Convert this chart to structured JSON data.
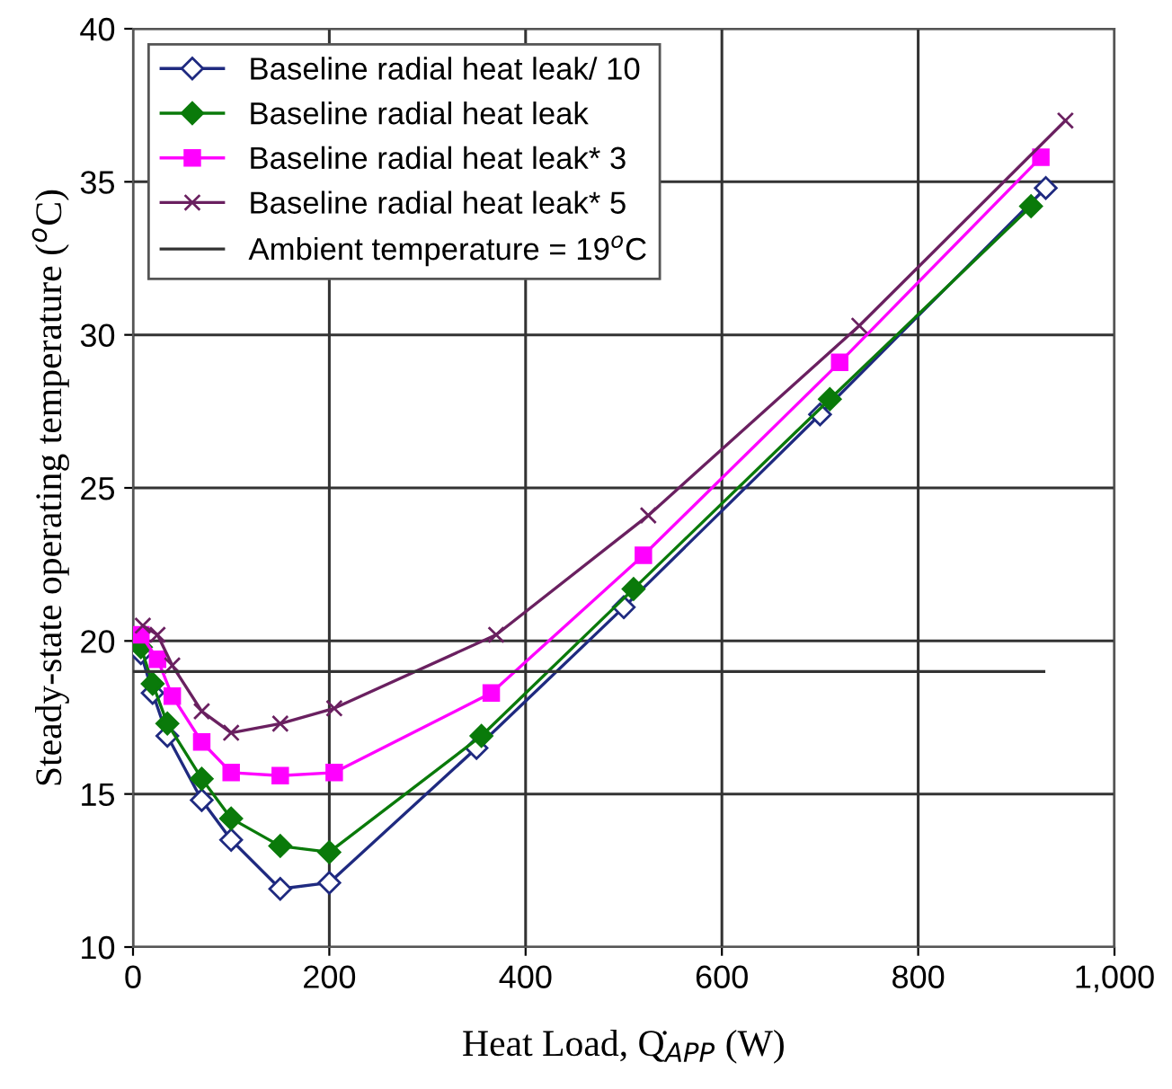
{
  "chart_data": {
    "type": "line",
    "xlabel": "Heat Load, Q̇$_{APP}$ (W)",
    "ylabel": "Steady-state operating temperature ($^{o}$C)",
    "xlim": [
      0,
      1000
    ],
    "ylim": [
      10,
      40
    ],
    "xticks": [
      0,
      200,
      400,
      600,
      800,
      {
        "value": 1000,
        "label": "1,000"
      }
    ],
    "yticks": [
      10,
      15,
      20,
      25,
      30,
      35,
      40
    ],
    "grid": true,
    "legend": "top left",
    "series": [
      {
        "name": "Baseline radial heat leak/ 10",
        "color": "#1f2a80",
        "marker": "diamond",
        "x": [
          8,
          20,
          35,
          70,
          100,
          150,
          200,
          350,
          500,
          700,
          930
        ],
        "values": [
          19.6,
          18.3,
          16.9,
          14.8,
          13.5,
          11.9,
          12.1,
          16.5,
          21.1,
          27.4,
          34.8
        ]
      },
      {
        "name": "Baseline radial heat leak",
        "color": "#0a7a0a",
        "marker": "diamond",
        "x": [
          8,
          20,
          35,
          70,
          100,
          150,
          200,
          355,
          510,
          710,
          915
        ],
        "values": [
          19.8,
          18.6,
          17.3,
          15.5,
          14.2,
          13.3,
          13.1,
          16.9,
          21.7,
          27.9,
          34.2
        ]
      },
      {
        "name": "Baseline radial heat leak* 3",
        "color": "#ff00ff",
        "marker": "square",
        "x": [
          8,
          25,
          40,
          70,
          100,
          150,
          205,
          365,
          520,
          720,
          925
        ],
        "values": [
          20.2,
          19.4,
          18.2,
          16.7,
          15.7,
          15.6,
          15.7,
          18.3,
          22.8,
          29.1,
          35.8
        ]
      },
      {
        "name": "Baseline radial heat leak* 5",
        "color": "#6a2060",
        "marker": "cross",
        "x": [
          10,
          25,
          40,
          70,
          100,
          150,
          205,
          370,
          525,
          740,
          950
        ],
        "values": [
          20.5,
          20.2,
          19.2,
          17.7,
          17.0,
          17.3,
          17.8,
          20.2,
          24.1,
          30.3,
          37.0
        ]
      },
      {
        "name": "Ambient temperature = 19$^{o}$C",
        "color": "#333333",
        "marker": "none",
        "x": [
          0,
          928
        ],
        "values": [
          19,
          19
        ]
      }
    ]
  }
}
